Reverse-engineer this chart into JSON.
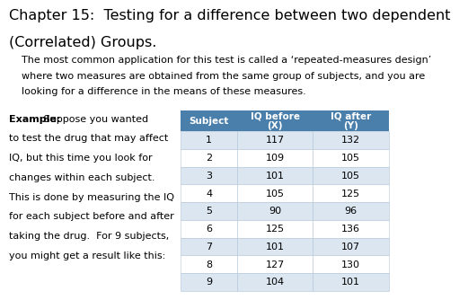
{
  "title_line1": "Chapter 15:  Testing for a difference between two dependent",
  "title_line2": "(Correlated) Groups.",
  "body_text_line1": "The most common application for this test is called a ‘repeated-measures design’",
  "body_text_line2": "where two measures are obtained from the same group of subjects, and you are",
  "body_text_line3": "looking for a difference in the means of these measures.",
  "example_bold": "Example:",
  "example_lines": [
    " Suppose you wanted",
    "to test the drug that may affect",
    "IQ, but this time you look for",
    "changes within each subject.",
    "This is done by measuring the IQ",
    "for each subject before and after",
    "taking the drug.  For 9 subjects,",
    "you might get a result like this:"
  ],
  "table_headers": [
    "Subject",
    "IQ before\n(X)",
    "IQ after\n(Y)"
  ],
  "table_data": [
    [
      1,
      117,
      132
    ],
    [
      2,
      109,
      105
    ],
    [
      3,
      101,
      105
    ],
    [
      4,
      105,
      125
    ],
    [
      5,
      90,
      96
    ],
    [
      6,
      125,
      136
    ],
    [
      7,
      101,
      107
    ],
    [
      8,
      127,
      130
    ],
    [
      9,
      104,
      101
    ]
  ],
  "header_bg": "#4a7eab",
  "header_fg": "#ffffff",
  "row_even_bg": "#dce6f0",
  "row_odd_bg": "#ffffff",
  "background_color": "#ffffff",
  "title_fontsize": 11.5,
  "body_fontsize": 8.0,
  "example_fontsize": 8.0,
  "table_fontsize": 8.0
}
